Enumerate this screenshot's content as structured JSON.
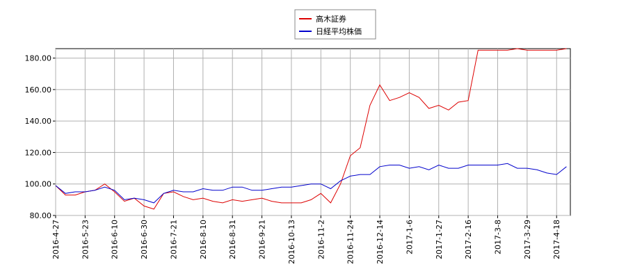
{
  "chart_data": {
    "type": "line",
    "categories": [
      "2016-4-27",
      null,
      null,
      "2016-5-23",
      null,
      null,
      "2016-6-10",
      null,
      null,
      "2016-6-30",
      null,
      null,
      "2016-7-21",
      null,
      null,
      "2016-8-10",
      null,
      null,
      "2016-8-31",
      null,
      null,
      "2016-9-21",
      null,
      null,
      "2016-10-13",
      null,
      null,
      "2016-11-2",
      null,
      null,
      "2016-11-24",
      null,
      null,
      "2016-12-14",
      null,
      null,
      "2017-1-6",
      null,
      null,
      "2017-1-27",
      null,
      null,
      "2017-2-16",
      null,
      null,
      "2017-3-8",
      null,
      null,
      "2017-3-29",
      null,
      null,
      "2017-4-18",
      null
    ],
    "series": [
      {
        "name": "高木証券",
        "color": "#dd0000",
        "values": [
          99,
          93,
          93,
          95,
          96,
          100,
          95,
          89,
          91,
          86,
          84,
          94,
          95,
          92,
          90,
          91,
          89,
          88,
          90,
          89,
          90,
          91,
          89,
          88,
          88,
          88,
          90,
          94,
          88,
          100,
          118,
          123,
          150,
          163,
          153,
          155,
          158,
          155,
          148,
          150,
          147,
          152,
          153,
          185,
          185,
          185,
          185,
          186,
          185,
          185,
          185,
          185,
          186
        ]
      },
      {
        "name": "日経平均株価",
        "color": "#0000cc",
        "values": [
          99,
          94,
          95,
          95,
          96,
          98,
          96,
          90,
          91,
          90,
          88,
          94,
          96,
          95,
          95,
          97,
          96,
          96,
          98,
          98,
          96,
          96,
          97,
          98,
          98,
          99,
          100,
          100,
          97,
          102,
          105,
          106,
          106,
          111,
          112,
          112,
          110,
          111,
          109,
          112,
          110,
          110,
          112,
          112,
          112,
          112,
          113,
          110,
          110,
          109,
          107,
          106,
          111
        ]
      }
    ],
    "ylim": [
      80,
      186
    ],
    "yticks": [
      {
        "value": 80,
        "label": "80.00"
      },
      {
        "value": 100,
        "label": "100.00"
      },
      {
        "value": 120,
        "label": "120.00"
      },
      {
        "value": 140,
        "label": "140.00"
      },
      {
        "value": 160,
        "label": "160.00"
      },
      {
        "value": 180,
        "label": "180.00"
      }
    ],
    "grid": true
  }
}
